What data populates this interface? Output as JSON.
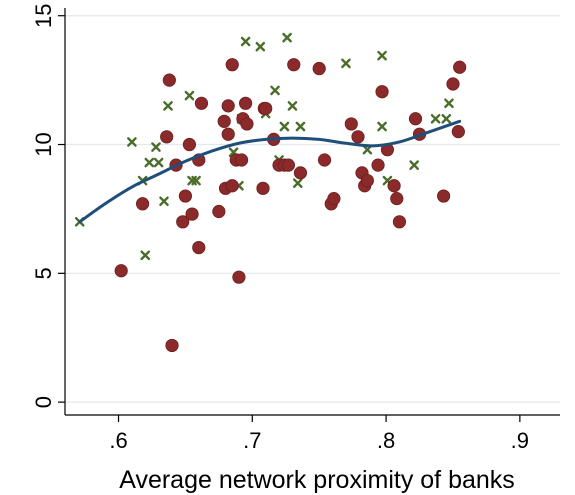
{
  "chart_data": {
    "type": "scatter",
    "title": "",
    "xlabel": "Average network proximity of banks",
    "ylabel": "",
    "xlim": [
      0.56,
      0.93
    ],
    "ylim": [
      -0.5,
      15.3
    ],
    "x_ticks": [
      0.6,
      0.7,
      0.8,
      0.9
    ],
    "x_tick_labels": [
      ".6",
      ".7",
      ".8",
      ".9"
    ],
    "y_ticks": [
      0,
      5,
      10,
      15
    ],
    "y_tick_labels": [
      "0",
      "5",
      "10",
      "15"
    ],
    "grid": "horizontal",
    "legend": "none",
    "colors": {
      "dots": "#8b2a2a",
      "crosses": "#4a6e2a",
      "fit": "#1f4e7a",
      "grid": "#e3e8ec"
    },
    "series": [
      {
        "marker": "circle",
        "points": [
          [
            0.602,
            5.1
          ],
          [
            0.618,
            7.7
          ],
          [
            0.636,
            10.3
          ],
          [
            0.638,
            12.5
          ],
          [
            0.64,
            2.2
          ],
          [
            0.643,
            9.2
          ],
          [
            0.648,
            7.0
          ],
          [
            0.65,
            8.0
          ],
          [
            0.653,
            10.0
          ],
          [
            0.655,
            7.3
          ],
          [
            0.66,
            6.0
          ],
          [
            0.66,
            9.4
          ],
          [
            0.662,
            11.6
          ],
          [
            0.675,
            7.4
          ],
          [
            0.679,
            10.9
          ],
          [
            0.68,
            8.3
          ],
          [
            0.682,
            10.4
          ],
          [
            0.682,
            11.5
          ],
          [
            0.685,
            8.4
          ],
          [
            0.685,
            13.1
          ],
          [
            0.688,
            9.4
          ],
          [
            0.69,
            4.85
          ],
          [
            0.692,
            9.4
          ],
          [
            0.693,
            11.0
          ],
          [
            0.695,
            11.6
          ],
          [
            0.696,
            10.8
          ],
          [
            0.708,
            8.3
          ],
          [
            0.709,
            11.4
          ],
          [
            0.71,
            11.4
          ],
          [
            0.716,
            10.2
          ],
          [
            0.72,
            9.2
          ],
          [
            0.724,
            9.2
          ],
          [
            0.727,
            9.2
          ],
          [
            0.731,
            13.1
          ],
          [
            0.736,
            8.9
          ],
          [
            0.75,
            12.95
          ],
          [
            0.754,
            9.4
          ],
          [
            0.759,
            7.7
          ],
          [
            0.761,
            7.9
          ],
          [
            0.774,
            10.8
          ],
          [
            0.779,
            10.3
          ],
          [
            0.782,
            8.9
          ],
          [
            0.784,
            8.4
          ],
          [
            0.786,
            8.6
          ],
          [
            0.794,
            9.2
          ],
          [
            0.797,
            12.05
          ],
          [
            0.801,
            9.8
          ],
          [
            0.806,
            8.4
          ],
          [
            0.808,
            7.9
          ],
          [
            0.81,
            7.0
          ],
          [
            0.822,
            11.0
          ],
          [
            0.825,
            10.4
          ],
          [
            0.843,
            8.0
          ],
          [
            0.85,
            12.35
          ],
          [
            0.854,
            10.5
          ],
          [
            0.855,
            13.0
          ]
        ]
      },
      {
        "marker": "cross",
        "points": [
          [
            0.571,
            7.0
          ],
          [
            0.61,
            10.1
          ],
          [
            0.618,
            8.6
          ],
          [
            0.62,
            5.7
          ],
          [
            0.623,
            9.3
          ],
          [
            0.628,
            9.9
          ],
          [
            0.63,
            9.3
          ],
          [
            0.634,
            7.8
          ],
          [
            0.637,
            11.5
          ],
          [
            0.653,
            11.9
          ],
          [
            0.655,
            8.6
          ],
          [
            0.658,
            8.6
          ],
          [
            0.686,
            9.7
          ],
          [
            0.69,
            8.4
          ],
          [
            0.692,
            11.0
          ],
          [
            0.695,
            14.0
          ],
          [
            0.706,
            13.8
          ],
          [
            0.71,
            11.2
          ],
          [
            0.717,
            12.1
          ],
          [
            0.72,
            9.4
          ],
          [
            0.724,
            10.7
          ],
          [
            0.726,
            14.15
          ],
          [
            0.73,
            11.5
          ],
          [
            0.734,
            8.5
          ],
          [
            0.736,
            10.7
          ],
          [
            0.77,
            13.15
          ],
          [
            0.786,
            9.8
          ],
          [
            0.797,
            13.45
          ],
          [
            0.797,
            10.7
          ],
          [
            0.801,
            8.6
          ],
          [
            0.821,
            9.2
          ],
          [
            0.837,
            11.0
          ],
          [
            0.845,
            11.0
          ],
          [
            0.847,
            11.6
          ]
        ]
      }
    ],
    "fit_line": {
      "x": [
        0.571,
        0.59,
        0.61,
        0.63,
        0.65,
        0.67,
        0.69,
        0.71,
        0.73,
        0.75,
        0.77,
        0.79,
        0.81,
        0.83,
        0.855
      ],
      "y": [
        7.0,
        7.7,
        8.35,
        8.85,
        9.35,
        9.75,
        10.05,
        10.2,
        10.25,
        10.2,
        10.05,
        9.95,
        10.1,
        10.45,
        10.9
      ]
    }
  }
}
